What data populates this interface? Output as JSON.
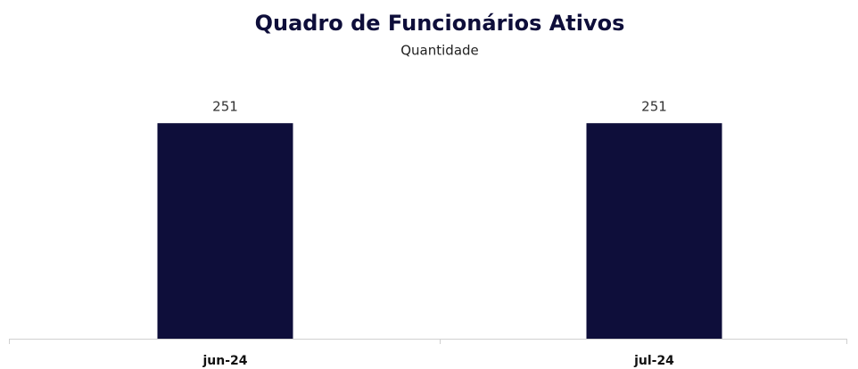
{
  "chart_data": {
    "type": "bar",
    "title": "Quadro de Funcionários Ativos",
    "subtitle": "Quantidade",
    "categories": [
      "jun-24",
      "jul-24"
    ],
    "values": [
      251,
      251
    ],
    "color": "#0e0e3a",
    "ylim": [
      0,
      300
    ]
  }
}
